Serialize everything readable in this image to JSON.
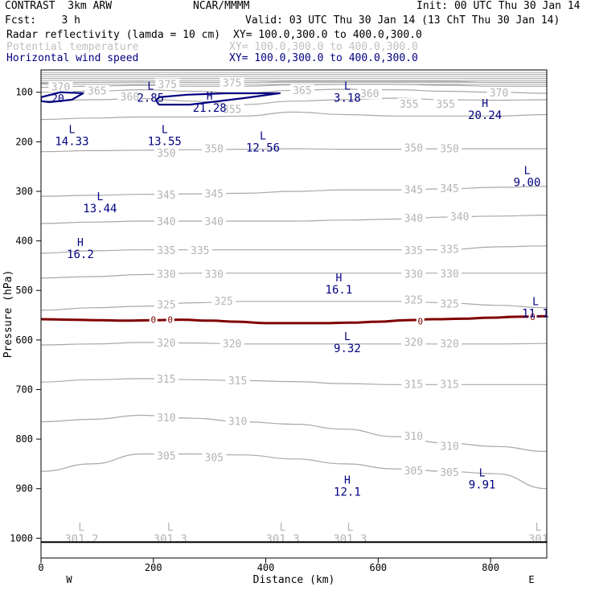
{
  "header": {
    "title": "CONTRAST  3km ARW",
    "org": "NCAR/MMMM",
    "init": "Init: 00 UTC Thu 30 Jan 14",
    "fcst": "Fcst:    3 h",
    "valid": "Valid: 03 UTC Thu 30 Jan 14 (13 ChT Thu 30 Jan 14)"
  },
  "fields": [
    {
      "name": "Radar reflectivity (lamda = 10 cm)",
      "xy": "XY= 100.0,300.0 to 400.0,300.0",
      "color": "#000000"
    },
    {
      "name": "Potential temperature",
      "xy": "XY= 100.0,300.0 to 400.0,300.0",
      "color": "#c0c0c0"
    },
    {
      "name": "Horizontal wind speed",
      "xy": "XY= 100.0,300.0 to 400.0,300.0",
      "color": "#000080"
    }
  ],
  "colors": {
    "theta": "#a8a8a8",
    "theta_label": "#b4b4b4",
    "wind": "#000080",
    "zero": "#800000",
    "axis": "#000000"
  },
  "chart_data": {
    "type": "cross-section contour",
    "xlabel": "Distance (km)",
    "ylabel": "Pressure (hPa)",
    "xlim": [
      0,
      900
    ],
    "ylim": [
      1040,
      55
    ],
    "x_ticks": [
      0,
      200,
      400,
      600,
      800
    ],
    "y_ticks": [
      100,
      200,
      300,
      400,
      500,
      600,
      700,
      800,
      900,
      1000
    ],
    "x_end_labels": {
      "left": "W",
      "right": "E"
    },
    "surface_pressure": 1008,
    "theta_contours": [
      {
        "value": 305,
        "p": [
          865,
          850,
          830,
          830,
          832,
          840,
          850,
          860,
          865,
          870,
          900
        ]
      },
      {
        "value": 310,
        "p": [
          765,
          760,
          752,
          758,
          765,
          770,
          780,
          795,
          808,
          815,
          825
        ]
      },
      {
        "value": 315,
        "p": [
          685,
          680,
          678,
          680,
          682,
          684,
          688,
          690,
          690,
          690,
          690
        ]
      },
      {
        "value": 320,
        "p": [
          610,
          608,
          605,
          606,
          608,
          608,
          608,
          608,
          608,
          608,
          607
        ]
      },
      {
        "value": 325,
        "p": [
          540,
          535,
          532,
          525,
          522,
          522,
          522,
          522,
          525,
          530,
          535
        ]
      },
      {
        "value": 330,
        "p": [
          475,
          472,
          468,
          465,
          465,
          465,
          465,
          465,
          465,
          465,
          465
        ]
      },
      {
        "value": 335,
        "p": [
          425,
          420,
          418,
          418,
          418,
          418,
          418,
          418,
          418,
          412,
          410
        ]
      },
      {
        "value": 340,
        "p": [
          365,
          362,
          360,
          360,
          360,
          360,
          358,
          356,
          352,
          350,
          348
        ]
      },
      {
        "value": 345,
        "p": [
          310,
          308,
          306,
          305,
          304,
          300,
          297,
          297,
          295,
          292,
          290
        ]
      },
      {
        "value": 350,
        "p": [
          220,
          218,
          217,
          216,
          215,
          214,
          215,
          215,
          214,
          214,
          214
        ]
      },
      {
        "value": 355,
        "p": [
          155,
          152,
          150,
          150,
          148,
          140,
          145,
          148,
          148,
          148,
          145
        ]
      },
      {
        "value": 360,
        "p": [
          118,
          115,
          113,
          118,
          125,
          118,
          115,
          112,
          115,
          116,
          115
        ]
      },
      {
        "value": 365,
        "p": [
          100,
          98,
          95,
          98,
          102,
          96,
          94,
          95,
          98,
          100,
          102
        ]
      },
      {
        "value": 370,
        "p": [
          90,
          88,
          86,
          88,
          88,
          85,
          84,
          84,
          86,
          88,
          88
        ]
      },
      {
        "value": 375,
        "p": [
          82,
          80,
          79,
          80,
          80,
          78,
          78,
          78,
          78,
          80,
          80
        ]
      }
    ],
    "theta_labels": [
      {
        "t": "370",
        "x": 35,
        "p": 90
      },
      {
        "t": "365",
        "x": 100,
        "p": 98
      },
      {
        "t": "360",
        "x": 158,
        "p": 110
      },
      {
        "t": "375",
        "x": 225,
        "p": 85
      },
      {
        "t": "375",
        "x": 340,
        "p": 82
      },
      {
        "t": "365",
        "x": 465,
        "p": 97
      },
      {
        "t": "360",
        "x": 585,
        "p": 104
      },
      {
        "t": "370",
        "x": 815,
        "p": 102
      },
      {
        "t": "355",
        "x": 340,
        "p": 135
      },
      {
        "t": "355",
        "x": 655,
        "p": 125
      },
      {
        "t": "355",
        "x": 720,
        "p": 125
      },
      {
        "t": "350",
        "x": 223,
        "p": 224
      },
      {
        "t": "350",
        "x": 308,
        "p": 215
      },
      {
        "t": "350",
        "x": 663,
        "p": 213
      },
      {
        "t": "350",
        "x": 727,
        "p": 215
      },
      {
        "t": "345",
        "x": 223,
        "p": 308
      },
      {
        "t": "345",
        "x": 308,
        "p": 306
      },
      {
        "t": "345",
        "x": 663,
        "p": 298
      },
      {
        "t": "345",
        "x": 727,
        "p": 295
      },
      {
        "t": "340",
        "x": 223,
        "p": 362
      },
      {
        "t": "340",
        "x": 308,
        "p": 362
      },
      {
        "t": "340",
        "x": 663,
        "p": 355
      },
      {
        "t": "340",
        "x": 745,
        "p": 352
      },
      {
        "t": "335",
        "x": 223,
        "p": 420
      },
      {
        "t": "335",
        "x": 283,
        "p": 420
      },
      {
        "t": "335",
        "x": 663,
        "p": 420
      },
      {
        "t": "335",
        "x": 727,
        "p": 418
      },
      {
        "t": "330",
        "x": 223,
        "p": 468
      },
      {
        "t": "330",
        "x": 308,
        "p": 468
      },
      {
        "t": "330",
        "x": 663,
        "p": 468
      },
      {
        "t": "330",
        "x": 727,
        "p": 467
      },
      {
        "t": "325",
        "x": 223,
        "p": 530
      },
      {
        "t": "325",
        "x": 325,
        "p": 522
      },
      {
        "t": "325",
        "x": 663,
        "p": 520
      },
      {
        "t": "325",
        "x": 727,
        "p": 528
      },
      {
        "t": "320",
        "x": 223,
        "p": 607
      },
      {
        "t": "320",
        "x": 340,
        "p": 608
      },
      {
        "t": "320",
        "x": 663,
        "p": 605
      },
      {
        "t": "320",
        "x": 727,
        "p": 608
      },
      {
        "t": "315",
        "x": 223,
        "p": 680
      },
      {
        "t": "315",
        "x": 350,
        "p": 683
      },
      {
        "t": "315",
        "x": 663,
        "p": 690
      },
      {
        "t": "315",
        "x": 727,
        "p": 690
      },
      {
        "t": "310",
        "x": 223,
        "p": 758
      },
      {
        "t": "310",
        "x": 350,
        "p": 765
      },
      {
        "t": "310",
        "x": 663,
        "p": 795
      },
      {
        "t": "310",
        "x": 727,
        "p": 815
      },
      {
        "t": "305",
        "x": 223,
        "p": 835
      },
      {
        "t": "305",
        "x": 308,
        "p": 838
      },
      {
        "t": "305",
        "x": 663,
        "p": 865
      },
      {
        "t": "305",
        "x": 727,
        "p": 868
      }
    ],
    "extrema": [
      {
        "type": "L",
        "value": "2.85",
        "x": 195,
        "p": 95,
        "color": "wind"
      },
      {
        "type": "H",
        "value": "21.28",
        "x": 300,
        "p": 115,
        "color": "wind"
      },
      {
        "type": "L",
        "value": "3.18",
        "x": 545,
        "p": 95,
        "color": "wind"
      },
      {
        "type": "H",
        "value": "20.24",
        "x": 790,
        "p": 130,
        "color": "wind"
      },
      {
        "type": "L",
        "value": "14.33",
        "x": 55,
        "p": 182,
        "color": "wind"
      },
      {
        "type": "L",
        "value": "13.55",
        "x": 220,
        "p": 182,
        "color": "wind"
      },
      {
        "type": "L",
        "value": "12.56",
        "x": 395,
        "p": 195,
        "color": "wind"
      },
      {
        "type": "L",
        "value": "9.00",
        "x": 865,
        "p": 265,
        "color": "wind"
      },
      {
        "type": "L",
        "value": "13.44",
        "x": 105,
        "p": 318,
        "color": "wind"
      },
      {
        "type": "H",
        "value": "16.2",
        "x": 70,
        "p": 410,
        "color": "wind"
      },
      {
        "type": "H",
        "value": "16.1",
        "x": 530,
        "p": 482,
        "color": "wind"
      },
      {
        "type": "L",
        "value": "11.1",
        "x": 880,
        "p": 530,
        "color": "wind"
      },
      {
        "type": "L",
        "value": "9.32",
        "x": 545,
        "p": 600,
        "color": "wind"
      },
      {
        "type": "L",
        "value": "9.91",
        "x": 785,
        "p": 875,
        "color": "wind"
      },
      {
        "type": "H",
        "value": "12.1",
        "x": 545,
        "p": 890,
        "color": "wind"
      },
      {
        "type": "L",
        "value": "301.2",
        "x": 72,
        "p": 985,
        "color": "theta_label"
      },
      {
        "type": "L",
        "value": "301.3",
        "x": 230,
        "p": 985,
        "color": "theta_label"
      },
      {
        "type": "L",
        "value": "301.3",
        "x": 430,
        "p": 985,
        "color": "theta_label"
      },
      {
        "type": "L",
        "value": "301.3",
        "x": 550,
        "p": 985,
        "color": "theta_label"
      },
      {
        "type": "L",
        "value": "301",
        "x": 885,
        "p": 985,
        "color": "theta_label"
      }
    ],
    "wind_contour": {
      "value": 20,
      "label_start": {
        "t": "20",
        "x": 30,
        "p": 112
      },
      "left": [
        [
          0,
          110
        ],
        [
          35,
          100
        ],
        [
          75,
          102
        ],
        [
          55,
          115
        ],
        [
          15,
          120
        ],
        [
          0,
          118
        ]
      ],
      "center": [
        [
          210,
          110
        ],
        [
          260,
          105
        ],
        [
          330,
          102
        ],
        [
          425,
          102
        ],
        [
          360,
          112
        ],
        [
          265,
          125
        ],
        [
          210,
          125
        ],
        [
          205,
          117
        ]
      ]
    },
    "zero_line": {
      "label": "0",
      "p": [
        558,
        559,
        560,
        561,
        560,
        559,
        561,
        563,
        566,
        566,
        566,
        565,
        563,
        560,
        558,
        557,
        555,
        553,
        552
      ],
      "markers": [
        {
          "x": 200,
          "p": 559
        },
        {
          "x": 230,
          "p": 559
        },
        {
          "x": 675,
          "p": 562
        },
        {
          "x": 875,
          "p": 553
        }
      ]
    }
  }
}
